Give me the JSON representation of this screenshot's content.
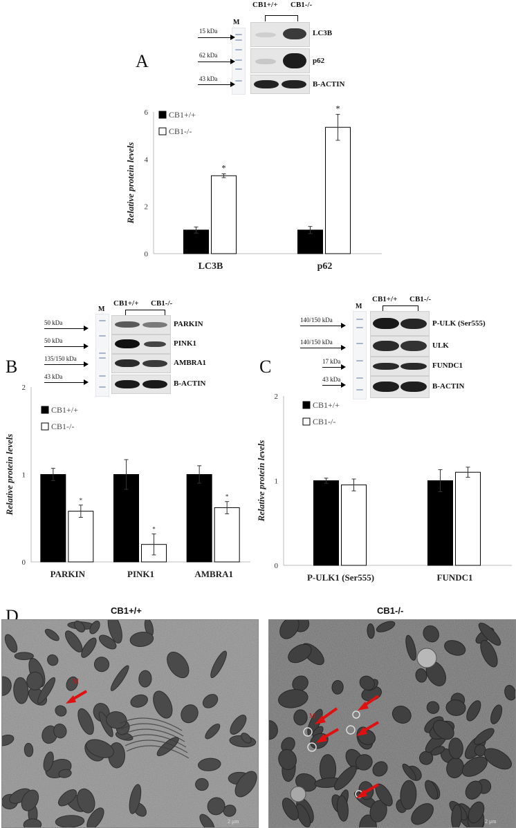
{
  "panels": {
    "A": "A",
    "B": "B",
    "C": "C",
    "D": "D"
  },
  "blots": {
    "A": {
      "marker": "M",
      "groups": [
        "CB1+/+",
        "CB1-/-"
      ],
      "rows": [
        {
          "kda": "15 kDa",
          "protein": "LC3B"
        },
        {
          "kda": "62 kDa",
          "protein": "p62"
        },
        {
          "kda": "43 kDa",
          "protein": "B-ACTIN"
        }
      ]
    },
    "B": {
      "marker": "M",
      "groups": [
        "CB1+/+",
        "CB1-/-"
      ],
      "rows": [
        {
          "kda": "50 kDa",
          "protein": "PARKIN"
        },
        {
          "kda": "50 kDa",
          "protein": "PINK1"
        },
        {
          "kda": "135/150 kDa",
          "protein": "AMBRA1"
        },
        {
          "kda": "43 kDa",
          "protein": "B-ACTIN"
        }
      ]
    },
    "C": {
      "marker": "M",
      "groups": [
        "CB1+/+",
        "CB1-/-"
      ],
      "rows": [
        {
          "kda": "140/150 kDa",
          "protein": "P-ULK (Ser555)"
        },
        {
          "kda": "140/150 kDa",
          "protein": "ULK"
        },
        {
          "kda": "17 kDa",
          "protein": "FUNDC1"
        },
        {
          "kda": "43 kDa",
          "protein": "B-ACTIN"
        }
      ]
    }
  },
  "chart_data": [
    {
      "type": "bar",
      "panel": "A",
      "categories": [
        "LC3B",
        "p62"
      ],
      "ylabel": "Relative protein levels",
      "ylim": [
        0,
        6
      ],
      "yticks": [
        "0",
        "2",
        "4",
        "6"
      ],
      "legend_position": "top-left",
      "series": [
        {
          "name": "CB1+/+",
          "color": "#000000",
          "values": [
            1.0,
            1.0
          ],
          "errors": [
            0.13,
            0.15
          ],
          "marks": [
            "",
            ""
          ]
        },
        {
          "name": "CB1-/-",
          "color": "#ffffff",
          "values": [
            3.3,
            5.35
          ],
          "errors": [
            0.08,
            0.55
          ],
          "marks": [
            "*",
            "*"
          ]
        }
      ]
    },
    {
      "type": "bar",
      "panel": "B",
      "categories": [
        "PARKIN",
        "PINK1",
        "AMBRA1"
      ],
      "ylabel": "Relative protein levels",
      "ylim": [
        0,
        2
      ],
      "yticks": [
        "0",
        "1",
        "2"
      ],
      "legend_position": "top-left",
      "series": [
        {
          "name": "CB1+/+",
          "color": "#000000",
          "values": [
            1.0,
            1.0,
            1.0
          ],
          "errors": [
            0.07,
            0.17,
            0.1
          ],
          "marks": [
            "",
            "",
            ""
          ]
        },
        {
          "name": "CB1-/-",
          "color": "#ffffff",
          "values": [
            0.58,
            0.2,
            0.62
          ],
          "errors": [
            0.07,
            0.12,
            0.07
          ],
          "marks": [
            "*",
            "*",
            "*"
          ]
        }
      ]
    },
    {
      "type": "bar",
      "panel": "C",
      "categories": [
        "P-ULK1 (Ser555)",
        "FUNDC1"
      ],
      "ylabel": "Relative protein levels",
      "ylim": [
        0,
        2
      ],
      "yticks": [
        "0",
        "1",
        "2"
      ],
      "legend_position": "top-left",
      "series": [
        {
          "name": "CB1+/+",
          "color": "#000000",
          "values": [
            1.0,
            1.0
          ],
          "errors": [
            0.03,
            0.13
          ],
          "marks": [
            "",
            ""
          ]
        },
        {
          "name": "CB1-/-",
          "color": "#ffffff",
          "values": [
            0.95,
            1.1
          ],
          "errors": [
            0.07,
            0.06
          ],
          "marks": [
            "",
            ""
          ]
        }
      ]
    }
  ],
  "em": {
    "left_title": "CB1+/+",
    "right_title": "CB1-/-",
    "label_m": "M",
    "scale_left": "2 μm",
    "scale_right": "2 μm"
  }
}
